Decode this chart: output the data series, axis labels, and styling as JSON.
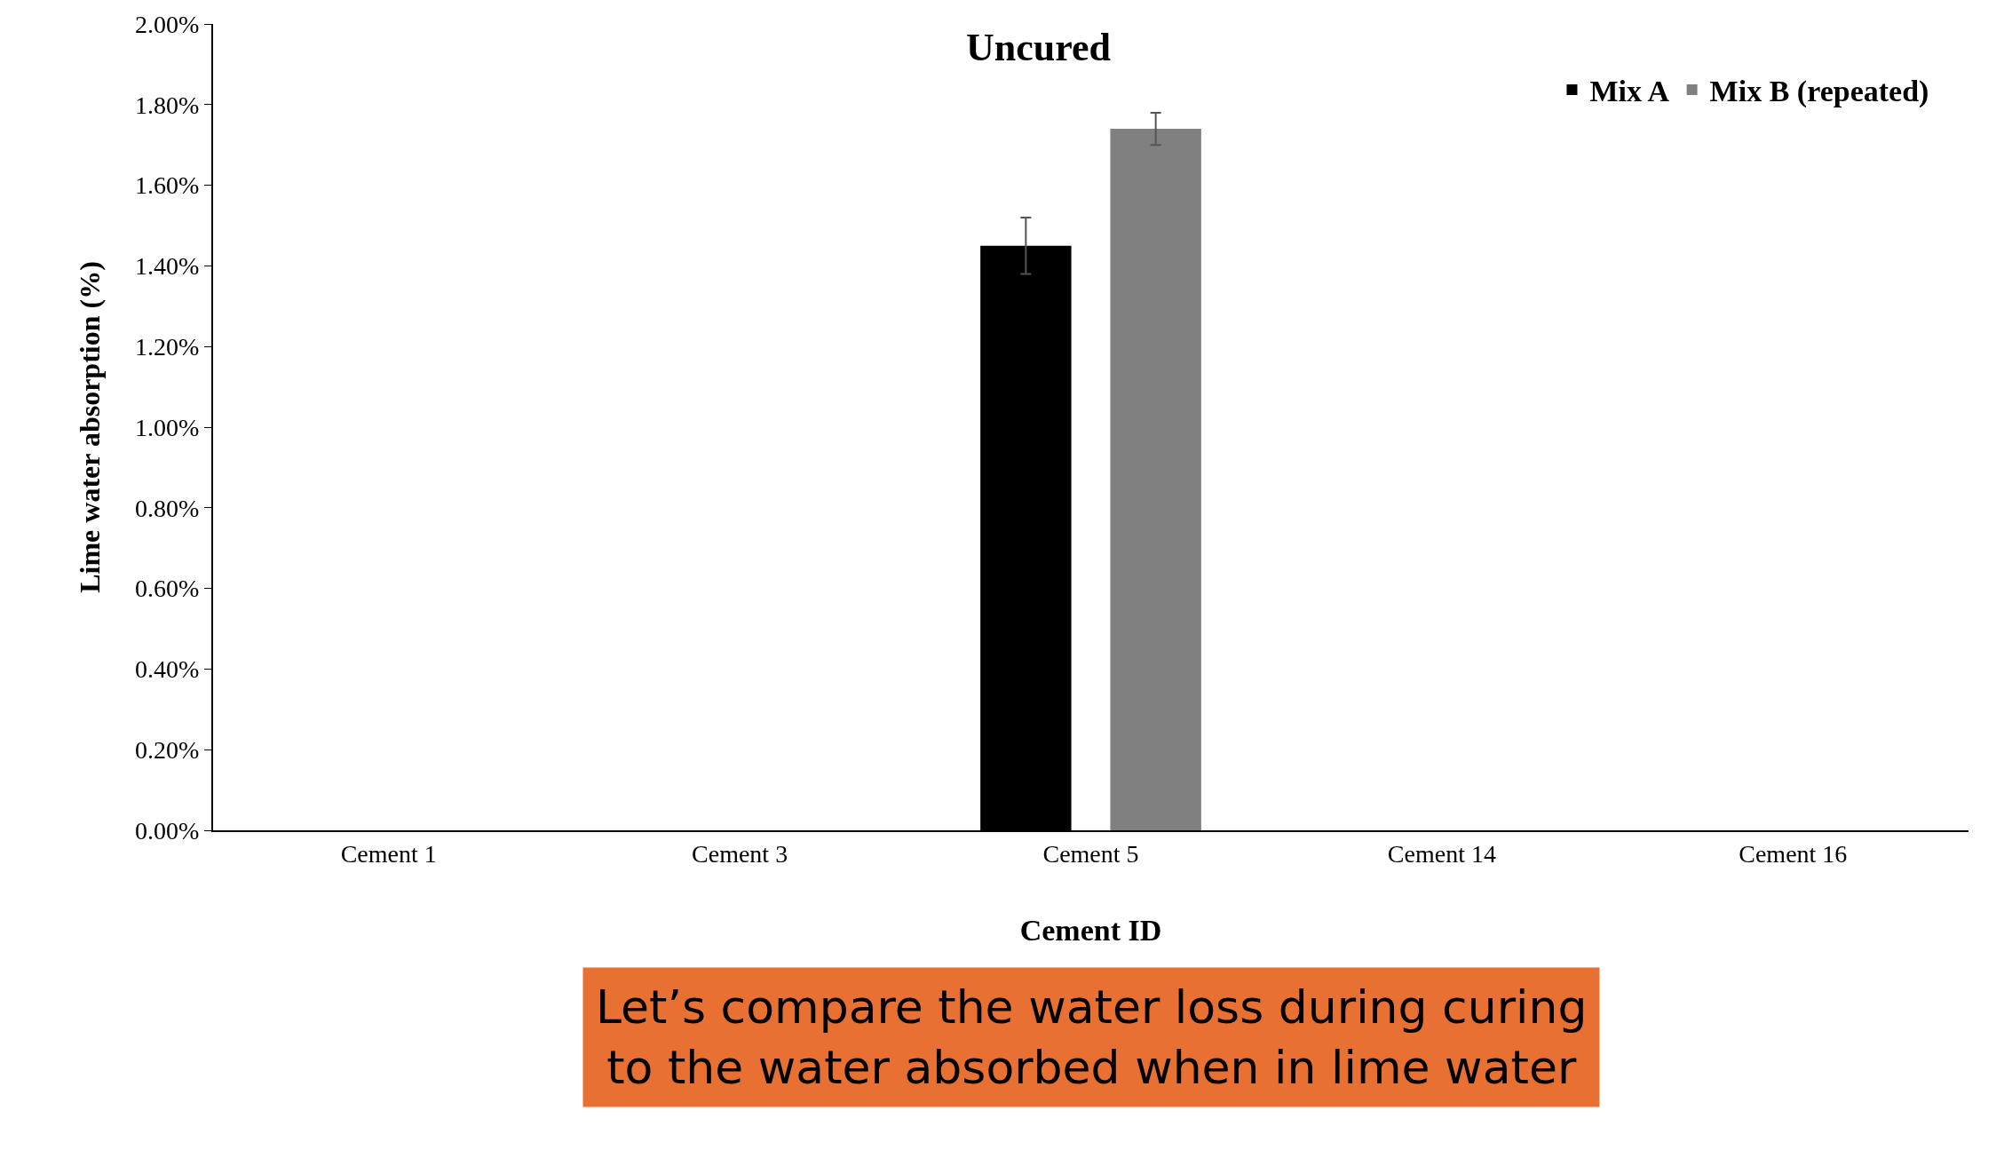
{
  "chart_data": {
    "type": "bar",
    "title": "Uncured",
    "xlabel": "Cement ID",
    "ylabel": "Lime water absorption (%)",
    "categories": [
      "Cement 1",
      "Cement 3",
      "Cement 5",
      "Cement 14",
      "Cement 16"
    ],
    "series": [
      {
        "name": "Mix A",
        "color": "#000000",
        "values": [
          null,
          null,
          1.45,
          null,
          null
        ],
        "errors": [
          null,
          null,
          0.07,
          null,
          null
        ]
      },
      {
        "name": "Mix B (repeated)",
        "color": "#808080",
        "values": [
          null,
          null,
          1.74,
          null,
          null
        ],
        "errors": [
          null,
          null,
          0.04,
          null,
          null
        ]
      }
    ],
    "ylim": [
      0,
      2
    ],
    "yticks": [
      {
        "value": 0,
        "label": "0.00%"
      },
      {
        "value": 0.2,
        "label": "0.20%"
      },
      {
        "value": 0.4,
        "label": "0.40%"
      },
      {
        "value": 0.6,
        "label": "0.60%"
      },
      {
        "value": 0.8,
        "label": "0.80%"
      },
      {
        "value": 1,
        "label": "1.00%"
      },
      {
        "value": 1.2,
        "label": "1.20%"
      },
      {
        "value": 1.4,
        "label": "1.40%"
      },
      {
        "value": 1.6,
        "label": "1.60%"
      },
      {
        "value": 1.8,
        "label": "1.80%"
      },
      {
        "value": 2,
        "label": "2.00%"
      }
    ],
    "grid": false,
    "legend": "top right",
    "annotations": [
      "Let’s compare the water loss during curing to the water absorbed when in lime water"
    ]
  }
}
